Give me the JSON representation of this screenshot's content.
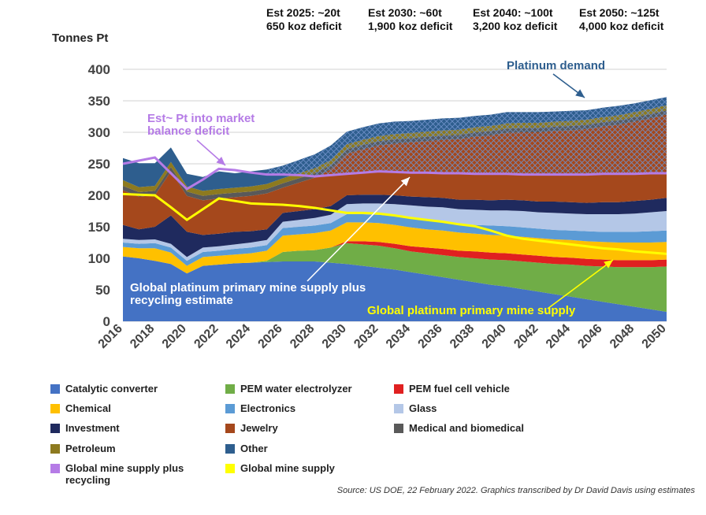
{
  "chart_data": {
    "type": "area",
    "ylabel": "Tonnes Pt",
    "ylim": [
      0,
      400
    ],
    "y_ticks": [
      "0",
      "50",
      "100",
      "150",
      "200",
      "250",
      "300",
      "350",
      "400"
    ],
    "x_ticks": [
      "2016",
      "2018",
      "2020",
      "2022",
      "2024",
      "2026",
      "2028",
      "2030",
      "2032",
      "2034",
      "2036",
      "2038",
      "2040",
      "2042",
      "2044",
      "2046",
      "2048",
      "2050"
    ],
    "x": [
      2016,
      2017,
      2018,
      2019,
      2020,
      2021,
      2022,
      2023,
      2024,
      2025,
      2026,
      2027,
      2028,
      2029,
      2030,
      2031,
      2032,
      2033,
      2034,
      2035,
      2036,
      2037,
      2038,
      2039,
      2040,
      2041,
      2042,
      2043,
      2044,
      2045,
      2046,
      2047,
      2048,
      2049,
      2050
    ],
    "stacked_series": [
      {
        "name": "Catalytic converter",
        "color": "#4472C4",
        "values": [
          103,
          100,
          96,
          91,
          76,
          88,
          90,
          92,
          93,
          94,
          95,
          95,
          95,
          93,
          91,
          88,
          85,
          82,
          78,
          74,
          70,
          66,
          62,
          58,
          55,
          51,
          47,
          43,
          39,
          35,
          31,
          27,
          23,
          19,
          15
        ]
      },
      {
        "name": "PEM water electrolyzer",
        "color": "#70AD47",
        "values": [
          0,
          0,
          0,
          0,
          0,
          0,
          0,
          0,
          0,
          2,
          15,
          17,
          18,
          24,
          33,
          34,
          35,
          34,
          33,
          34,
          35,
          36,
          38,
          40,
          42,
          44,
          46,
          48,
          51,
          53,
          56,
          59,
          63,
          67,
          72
        ]
      },
      {
        "name": "PEM fuel cell vehicle",
        "color": "#E02020",
        "values": [
          0,
          0,
          0,
          0,
          0,
          0,
          0,
          0,
          0,
          0,
          0,
          0,
          0,
          0,
          3,
          5,
          6,
          7,
          8,
          9,
          10,
          10,
          11,
          11,
          11,
          11,
          11,
          11,
          11,
          11,
          11,
          11,
          11,
          11,
          11
        ]
      },
      {
        "name": "Chemical",
        "color": "#FFC000",
        "values": [
          15,
          16,
          20,
          18,
          12,
          14,
          14,
          14,
          15,
          16,
          26,
          26,
          27,
          27,
          30,
          30,
          30,
          30,
          30,
          29,
          29,
          29,
          28,
          28,
          28,
          28,
          28,
          28,
          28,
          28,
          28,
          28,
          28,
          28,
          28
        ]
      },
      {
        "name": "Electronics",
        "color": "#5B9BD5",
        "values": [
          7,
          7,
          8,
          8,
          8,
          8,
          8,
          9,
          9,
          9,
          12,
          12,
          12,
          12,
          13,
          13,
          13,
          14,
          14,
          14,
          14,
          14,
          14,
          15,
          15,
          15,
          15,
          15,
          15,
          16,
          16,
          17,
          17,
          18,
          18
        ]
      },
      {
        "name": "Glass",
        "color": "#B4C7E7",
        "values": [
          6,
          6,
          6,
          6,
          6,
          7,
          7,
          7,
          8,
          8,
          10,
          11,
          12,
          13,
          16,
          17,
          18,
          19,
          21,
          22,
          23,
          23,
          24,
          24,
          25,
          26,
          26,
          27,
          27,
          27,
          28,
          28,
          29,
          30,
          31
        ]
      },
      {
        "name": "Investment",
        "color": "#1F2A5E",
        "values": [
          22,
          17,
          20,
          45,
          40,
          20,
          20,
          20,
          18,
          17,
          14,
          14,
          14,
          14,
          14,
          14,
          14,
          14,
          14,
          15,
          15,
          15,
          16,
          16,
          17,
          17,
          17,
          18,
          18,
          18,
          19,
          19,
          20,
          20,
          21
        ]
      },
      {
        "name": "Jewelry",
        "color": "#A5481C",
        "values": [
          55,
          52,
          50,
          70,
          57,
          55,
          56,
          55,
          56,
          57,
          40,
          45,
          50,
          58,
          66,
          72,
          78,
          82,
          86,
          89,
          92,
          96,
          100,
          103,
          106,
          108,
          110,
          112,
          114,
          117,
          120,
          123,
          126,
          129,
          132
        ]
      },
      {
        "name": "Medical and biomedical",
        "color": "#595959",
        "values": [
          7,
          7,
          7,
          7,
          7,
          7,
          7,
          7,
          7,
          7,
          7,
          7,
          7,
          7,
          7,
          7,
          7,
          7,
          7,
          7,
          7,
          7,
          7,
          7,
          7,
          7,
          7,
          7,
          7,
          7,
          7,
          7,
          7,
          7,
          7
        ]
      },
      {
        "name": "Petroleum",
        "color": "#8D7A1F",
        "values": [
          9,
          8,
          8,
          8,
          8,
          8,
          8,
          8,
          8,
          8,
          8,
          8,
          8,
          8,
          8,
          8,
          8,
          8,
          8,
          8,
          8,
          8,
          8,
          8,
          8,
          8,
          8,
          8,
          8,
          8,
          8,
          8,
          8,
          8,
          8
        ]
      },
      {
        "name": "Other",
        "color": "#2E5E8E",
        "values": [
          35,
          38,
          36,
          23,
          20,
          22,
          28,
          23,
          24,
          23,
          20,
          21,
          22,
          23,
          20,
          20,
          20,
          20,
          19,
          19,
          19,
          19,
          18,
          18,
          18,
          17,
          17,
          16,
          16,
          15,
          15,
          15,
          14,
          14,
          13
        ]
      }
    ],
    "line_series": [
      {
        "name": "Global mine supply plus recycling",
        "color": "#B57BE6",
        "values": [
          250,
          255,
          260,
          235,
          210,
          225,
          242,
          240,
          236,
          233,
          233,
          232,
          230,
          232,
          234,
          236,
          238,
          237,
          236,
          236,
          235,
          235,
          234,
          234,
          234,
          233,
          233,
          233,
          233,
          233,
          234,
          234,
          234,
          235,
          235
        ]
      },
      {
        "name": "Global mine supply",
        "color": "#FFFF00",
        "values": [
          202,
          201,
          200,
          181,
          161,
          178,
          195,
          191,
          187,
          186,
          185,
          183,
          180,
          176,
          172,
          172,
          171,
          168,
          164,
          161,
          158,
          154,
          151,
          144,
          136,
          131,
          128,
          125,
          122,
          119,
          116,
          114,
          111,
          109,
          107
        ]
      }
    ],
    "annotations": {
      "est_labels": [
        {
          "line1": "Est 2025: ~20t",
          "line2": "650 koz deficit"
        },
        {
          "line1": "Est 2030: ~60t",
          "line2": "1,900 koz deficit"
        },
        {
          "line1": "Est 2040: ~100t",
          "line2": "3,200 koz deficit"
        },
        {
          "line1": "Est 2050: ~125t",
          "line2": "4,000 koz deficit"
        }
      ],
      "platinum_demand": "Platinum demand",
      "balance_deficit_line1": "Est~ Pt into market",
      "balance_deficit_line2": "balance deficit",
      "supply_recycling_line1": "Global platinum primary mine supply plus",
      "supply_recycling_line2": "recycling estimate",
      "primary_supply": "Global platinum primary mine supply"
    },
    "colors": {
      "hatch_overlay": "#6E90C8",
      "demand_text": "#2E5E8E",
      "deficit_text": "#B57BE6",
      "primary_text": "#FFFF00"
    }
  },
  "legend": [
    {
      "label": "Catalytic converter",
      "color": "#4472C4"
    },
    {
      "label": "PEM water electrolyzer",
      "color": "#70AD47"
    },
    {
      "label": "PEM fuel cell vehicle",
      "color": "#E02020"
    },
    {
      "label": "Chemical",
      "color": "#FFC000"
    },
    {
      "label": "Electronics",
      "color": "#5B9BD5"
    },
    {
      "label": "Glass",
      "color": "#B4C7E7"
    },
    {
      "label": "Investment",
      "color": "#1F2A5E"
    },
    {
      "label": "Jewelry",
      "color": "#A5481C"
    },
    {
      "label": "Medical and biomedical",
      "color": "#595959"
    },
    {
      "label": "Petroleum",
      "color": "#8D7A1F"
    },
    {
      "label": "Other",
      "color": "#2E5E8E"
    },
    {
      "label": "",
      "color": ""
    },
    {
      "label": "Global mine supply plus recycling",
      "color": "#B57BE6"
    },
    {
      "label": "Global mine supply",
      "color": "#FFFF00"
    }
  ],
  "source": "Source: US DOE, 22 February 2022. Graphics transcribed by Dr David Davis using estimates"
}
